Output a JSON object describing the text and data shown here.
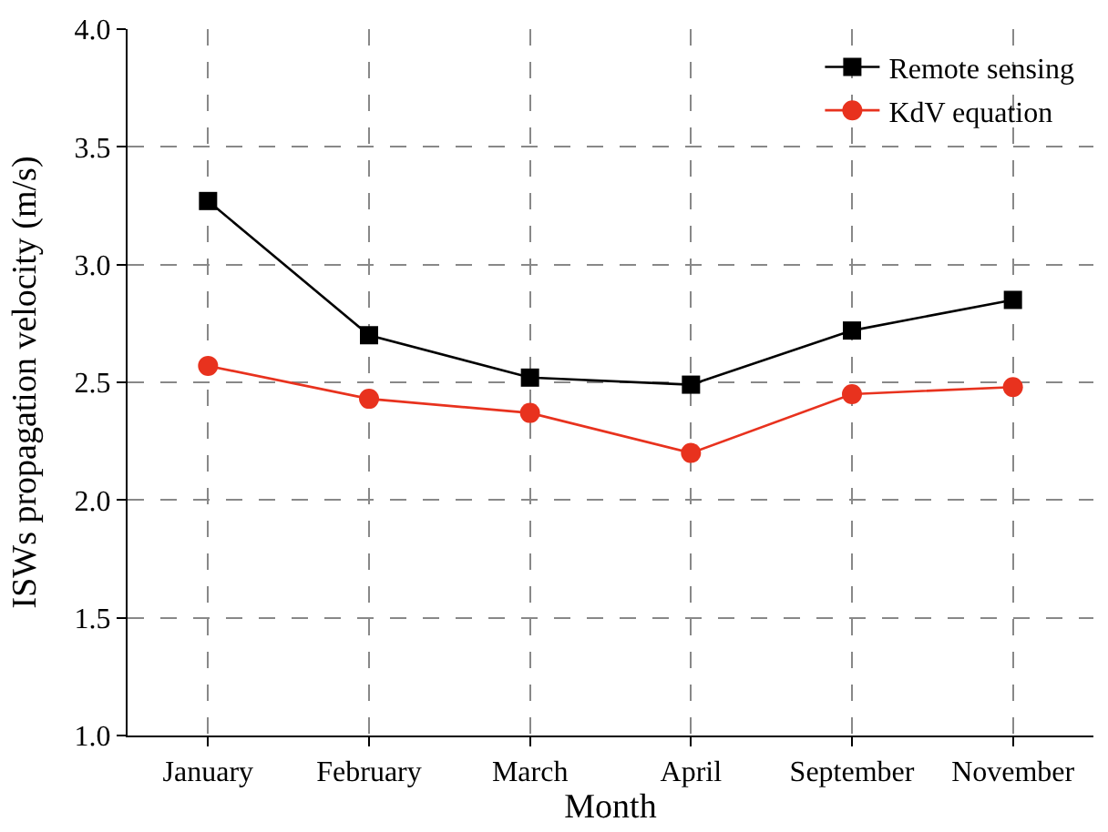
{
  "chart_data": {
    "type": "line",
    "xlabel": "Month",
    "ylabel": "ISWs propagation velocity (m/s)",
    "categories": [
      "January",
      "February",
      "March",
      "April",
      "September",
      "November"
    ],
    "series": [
      {
        "name": "Remote sensing",
        "color": "#000000",
        "marker": "square",
        "values": [
          3.27,
          2.7,
          2.52,
          2.49,
          2.72,
          2.85
        ]
      },
      {
        "name": "KdV equation",
        "color": "#e8321e",
        "marker": "circle",
        "values": [
          2.57,
          2.43,
          2.37,
          2.2,
          2.45,
          2.48
        ]
      }
    ],
    "ylim": [
      1.0,
      4.0
    ],
    "yticks": [
      {
        "value": 1.0,
        "label": "1.0"
      },
      {
        "value": 1.5,
        "label": "1.5"
      },
      {
        "value": 2.0,
        "label": "2.0"
      },
      {
        "value": 2.5,
        "label": "2.5"
      },
      {
        "value": 3.0,
        "label": "3.0"
      },
      {
        "value": 3.5,
        "label": "3.5"
      },
      {
        "value": 4.0,
        "label": "4.0"
      }
    ],
    "grid": true,
    "legend": "top right",
    "line_style": "solid"
  }
}
